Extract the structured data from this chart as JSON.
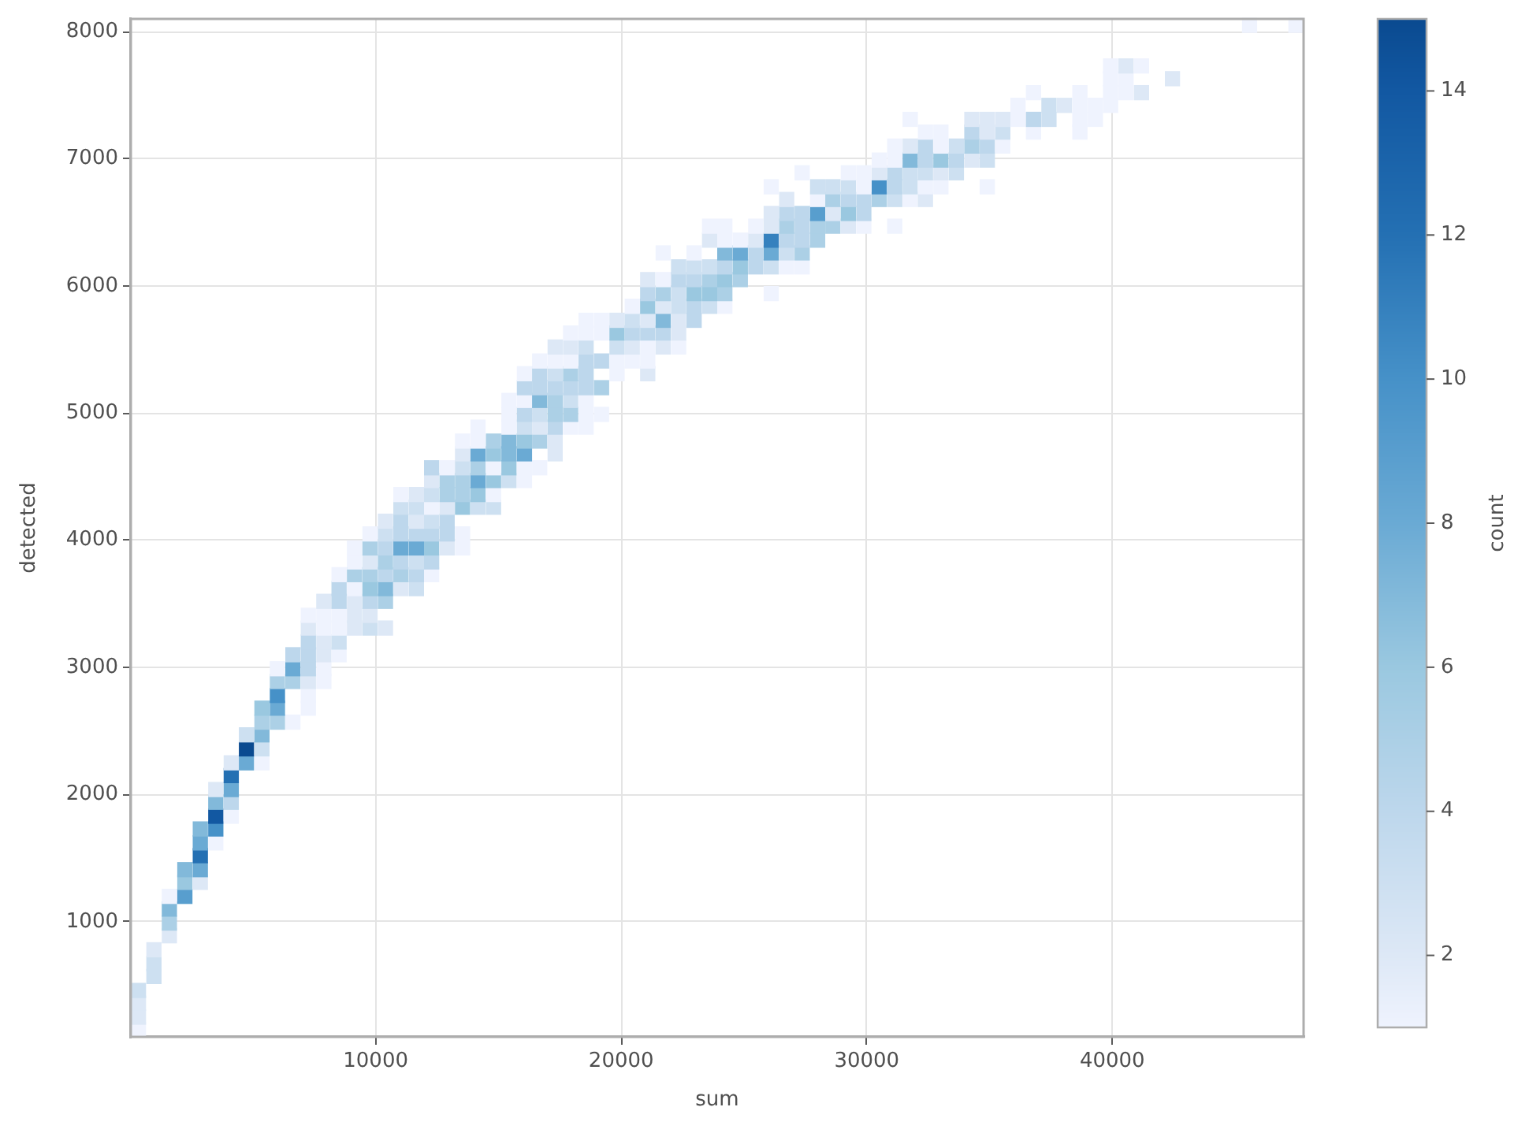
{
  "chart_data": {
    "type": "scatter",
    "xlabel": "sum",
    "ylabel": "detected",
    "clabel": "count",
    "marker": "square",
    "grid": true,
    "xlim": [
      30,
      47790
    ],
    "ylim": [
      95,
      8100
    ],
    "xticks": [
      10000,
      20000,
      30000,
      40000
    ],
    "yticks": [
      1000,
      2000,
      3000,
      4000,
      5000,
      6000,
      7000,
      8000
    ],
    "clim": [
      1,
      15
    ],
    "cticks": [
      2,
      4,
      6,
      8,
      10,
      12,
      14
    ],
    "x": [
      340,
      340,
      340,
      340,
      970,
      970,
      970,
      1600,
      1600,
      1600,
      1600,
      2230,
      2230,
      2860,
      2230,
      2860,
      2860,
      2860,
      3490,
      2860,
      3490,
      3490,
      4120,
      3490,
      4120,
      3490,
      4120,
      4120,
      4120,
      4740,
      5370,
      4740,
      5370,
      4740,
      5370,
      5370,
      6000,
      6630,
      5370,
      6000,
      7260,
      6000,
      7260,
      6000,
      6630,
      7260,
      7890,
      6000,
      6630,
      7260,
      7890,
      6630,
      7260,
      7890,
      8510,
      7260,
      7890,
      8510,
      7260,
      7890,
      8510,
      9140,
      9770,
      10400,
      7260,
      7890,
      8510,
      9140,
      9770,
      7890,
      8510,
      9140,
      9770,
      10400,
      8510,
      9140,
      9770,
      10400,
      11030,
      11660,
      8510,
      9140,
      9770,
      10400,
      11030,
      11660,
      12280,
      9140,
      9770,
      10400,
      11030,
      11660,
      12280,
      9140,
      9770,
      10400,
      11030,
      11660,
      12280,
      12910,
      13540,
      9770,
      10400,
      11030,
      11660,
      12280,
      12910,
      13540,
      10400,
      11030,
      11660,
      12280,
      12910,
      11030,
      11660,
      12280,
      12910,
      13540,
      14170,
      14800,
      11030,
      11660,
      12280,
      12910,
      13540,
      14170,
      14800,
      12280,
      12910,
      13540,
      14170,
      14800,
      15430,
      16060,
      12280,
      12910,
      13540,
      14170,
      14800,
      15430,
      16060,
      16680,
      13540,
      14170,
      14800,
      15430,
      16060,
      17310,
      13540,
      14170,
      14800,
      15430,
      16060,
      16680,
      17310,
      14170,
      15430,
      16060,
      16680,
      17310,
      17940,
      18570,
      15430,
      16060,
      16680,
      17310,
      17940,
      18570,
      19200,
      15430,
      16060,
      16680,
      17310,
      17940,
      18570,
      16060,
      16680,
      17310,
      17940,
      18570,
      19200,
      16060,
      16680,
      17310,
      17940,
      18570,
      19830,
      21080,
      16680,
      17310,
      17940,
      18570,
      19200,
      19830,
      20450,
      21080,
      17310,
      17940,
      18570,
      19830,
      20450,
      21080,
      21710,
      22340,
      17940,
      18570,
      19200,
      19830,
      20450,
      21080,
      21710,
      22340,
      18570,
      19200,
      19830,
      20450,
      21080,
      21710,
      22340,
      22970,
      20450,
      21080,
      21710,
      22340,
      22970,
      23600,
      24220,
      21080,
      21710,
      22340,
      22970,
      23600,
      24220,
      26110,
      21080,
      21710,
      22340,
      22970,
      23600,
      24220,
      24850,
      22340,
      22970,
      23600,
      24220,
      24850,
      25480,
      26110,
      26740,
      27370,
      21710,
      22970,
      24220,
      24850,
      25480,
      26110,
      26740,
      27370,
      23600,
      24220,
      24850,
      25480,
      26110,
      26740,
      27370,
      28000,
      23600,
      24220,
      25480,
      26110,
      26740,
      27370,
      28000,
      28620,
      29250,
      29880,
      31140,
      26110,
      26740,
      27370,
      28000,
      28620,
      29250,
      29880,
      26740,
      28000,
      28620,
      29250,
      29880,
      30510,
      31140,
      31770,
      32390,
      26110,
      28000,
      28620,
      29250,
      29880,
      30510,
      31140,
      31770,
      32390,
      33020,
      34910,
      27370,
      29250,
      29880,
      30510,
      31140,
      31770,
      32390,
      33020,
      33650,
      30510,
      31140,
      31770,
      32390,
      33020,
      33650,
      34280,
      34910,
      31140,
      31770,
      32390,
      33020,
      33650,
      34280,
      34910,
      35540,
      32390,
      33020,
      34280,
      34910,
      35540,
      36790,
      38680,
      31770,
      34280,
      34910,
      35540,
      36160,
      36790,
      37420,
      38680,
      39310,
      36160,
      37420,
      38050,
      38680,
      39310,
      39930,
      36790,
      38680,
      39930,
      40560,
      41190,
      39930,
      40560,
      42450,
      39930,
      40560,
      41190,
      45590,
      47480
    ],
    "values": [
      150,
      250,
      360,
      460,
      570,
      670,
      780,
      890,
      990,
      1100,
      1200,
      1200,
      1310,
      1310,
      1410,
      1410,
      1520,
      1620,
      1620,
      1730,
      1730,
      1830,
      1830,
      1940,
      1940,
      2040,
      2040,
      2150,
      2250,
      2250,
      2250,
      2360,
      2360,
      2470,
      2470,
      2570,
      2570,
      2570,
      2680,
      2680,
      2680,
      2780,
      2780,
      2890,
      2890,
      2890,
      2890,
      2990,
      2990,
      2990,
      2990,
      3100,
      3100,
      3100,
      3100,
      3200,
      3200,
      3200,
      3310,
      3310,
      3310,
      3310,
      3310,
      3310,
      3410,
      3410,
      3410,
      3410,
      3410,
      3520,
      3520,
      3520,
      3520,
      3520,
      3620,
      3620,
      3620,
      3620,
      3620,
      3620,
      3730,
      3730,
      3730,
      3730,
      3730,
      3730,
      3730,
      3830,
      3830,
      3830,
      3830,
      3830,
      3830,
      3940,
      3940,
      3940,
      3940,
      3940,
      3940,
      3940,
      3940,
      4050,
      4050,
      4050,
      4050,
      4050,
      4050,
      4050,
      4150,
      4150,
      4150,
      4150,
      4150,
      4260,
      4260,
      4260,
      4260,
      4260,
      4260,
      4260,
      4360,
      4360,
      4360,
      4360,
      4360,
      4360,
      4360,
      4470,
      4470,
      4470,
      4470,
      4470,
      4470,
      4470,
      4570,
      4570,
      4570,
      4570,
      4570,
      4570,
      4570,
      4570,
      4680,
      4680,
      4680,
      4680,
      4680,
      4680,
      4780,
      4780,
      4780,
      4780,
      4780,
      4780,
      4780,
      4890,
      4890,
      4890,
      4890,
      4890,
      4890,
      4890,
      4990,
      4990,
      4990,
      4990,
      4990,
      4990,
      4990,
      5100,
      5100,
      5100,
      5100,
      5100,
      5100,
      5200,
      5200,
      5200,
      5200,
      5200,
      5200,
      5310,
      5310,
      5310,
      5310,
      5310,
      5310,
      5310,
      5410,
      5410,
      5410,
      5410,
      5410,
      5410,
      5410,
      5410,
      5520,
      5520,
      5520,
      5520,
      5520,
      5520,
      5520,
      5520,
      5630,
      5630,
      5630,
      5630,
      5630,
      5630,
      5630,
      5630,
      5730,
      5730,
      5730,
      5730,
      5730,
      5730,
      5730,
      5730,
      5840,
      5840,
      5840,
      5840,
      5840,
      5840,
      5840,
      5940,
      5940,
      5940,
      5940,
      5940,
      5940,
      5940,
      6050,
      6050,
      6050,
      6050,
      6050,
      6050,
      6050,
      6150,
      6150,
      6150,
      6150,
      6150,
      6150,
      6150,
      6150,
      6150,
      6260,
      6260,
      6260,
      6260,
      6260,
      6260,
      6260,
      6260,
      6360,
      6360,
      6360,
      6360,
      6360,
      6360,
      6360,
      6360,
      6470,
      6470,
      6470,
      6470,
      6470,
      6470,
      6470,
      6470,
      6470,
      6470,
      6470,
      6570,
      6570,
      6570,
      6570,
      6570,
      6570,
      6570,
      6680,
      6680,
      6680,
      6680,
      6680,
      6680,
      6680,
      6680,
      6680,
      6780,
      6780,
      6780,
      6780,
      6780,
      6780,
      6780,
      6780,
      6780,
      6780,
      6780,
      6890,
      6890,
      6890,
      6890,
      6890,
      6890,
      6890,
      6890,
      6890,
      6990,
      6990,
      6990,
      6990,
      6990,
      6990,
      6990,
      6990,
      7100,
      7100,
      7100,
      7100,
      7100,
      7100,
      7100,
      7100,
      7210,
      7210,
      7210,
      7210,
      7210,
      7210,
      7210,
      7310,
      7310,
      7310,
      7310,
      7310,
      7310,
      7310,
      7310,
      7310,
      7420,
      7420,
      7420,
      7420,
      7420,
      7420,
      7520,
      7520,
      7520,
      7520,
      7520,
      7630,
      7630,
      7630,
      7730,
      7730,
      7730,
      8050,
      8050
    ],
    "cvalues": [
      1,
      2,
      2,
      3,
      3,
      3,
      2,
      2,
      5,
      7,
      1,
      9,
      6,
      2,
      7,
      8,
      12,
      8,
      1,
      7,
      10,
      14,
      1,
      7,
      4,
      2,
      8,
      12,
      2,
      8,
      1,
      15,
      3,
      3,
      7,
      5,
      5,
      1,
      6,
      8,
      1,
      10,
      1,
      5,
      5,
      2,
      1,
      1,
      8,
      4,
      1,
      4,
      4,
      2,
      1,
      4,
      2,
      3,
      2,
      1,
      1,
      2,
      3,
      2,
      1,
      1,
      1,
      2,
      2,
      2,
      4,
      2,
      4,
      5,
      4,
      1,
      6,
      7,
      2,
      3,
      1,
      5,
      5,
      4,
      5,
      4,
      1,
      1,
      2,
      5,
      4,
      3,
      4,
      1,
      5,
      4,
      8,
      8,
      6,
      2,
      1,
      1,
      3,
      4,
      4,
      4,
      4,
      1,
      2,
      4,
      2,
      3,
      4,
      3,
      3,
      1,
      2,
      6,
      3,
      3,
      1,
      2,
      3,
      5,
      5,
      6,
      1,
      2,
      5,
      5,
      8,
      6,
      3,
      1,
      4,
      1,
      3,
      5,
      1,
      6,
      1,
      1,
      2,
      8,
      6,
      7,
      8,
      2,
      1,
      1,
      5,
      7,
      6,
      5,
      2,
      1,
      1,
      3,
      2,
      4,
      1,
      1,
      1,
      4,
      3,
      5,
      5,
      1,
      1,
      1,
      1,
      7,
      5,
      3,
      1,
      4,
      4,
      4,
      4,
      4,
      5,
      1,
      4,
      3,
      5,
      4,
      1,
      2,
      1,
      1,
      1,
      4,
      4,
      1,
      1,
      1,
      2,
      2,
      3,
      3,
      2,
      1,
      2,
      1,
      1,
      1,
      1,
      6,
      4,
      4,
      4,
      2,
      1,
      1,
      2,
      3,
      2,
      7,
      2,
      4,
      1,
      6,
      2,
      3,
      4,
      3,
      1,
      4,
      5,
      3,
      6,
      6,
      5,
      1,
      2,
      1,
      4,
      4,
      5,
      6,
      5,
      3,
      3,
      3,
      4,
      6,
      4,
      3,
      1,
      1,
      1,
      1,
      7,
      8,
      4,
      8,
      3,
      5,
      2,
      1,
      1,
      2,
      11,
      4,
      4,
      5,
      1,
      1,
      1,
      2,
      5,
      4,
      5,
      5,
      2,
      1,
      1,
      2,
      4,
      4,
      9,
      2,
      6,
      4,
      2,
      1,
      5,
      4,
      4,
      5,
      3,
      1,
      2,
      1,
      3,
      3,
      3,
      1,
      10,
      4,
      3,
      1,
      1,
      1,
      1,
      1,
      1,
      2,
      4,
      3,
      3,
      2,
      3,
      1,
      1,
      7,
      4,
      6,
      4,
      2,
      3,
      1,
      2,
      4,
      1,
      3,
      5,
      4,
      1,
      1,
      1,
      4,
      2,
      3,
      1,
      1,
      1,
      2,
      2,
      2,
      1,
      4,
      3,
      1,
      1,
      1,
      3,
      2,
      1,
      1,
      1,
      1,
      1,
      1,
      1,
      2,
      1,
      1,
      2,
      1,
      2,
      1,
      1,
      1
    ]
  }
}
